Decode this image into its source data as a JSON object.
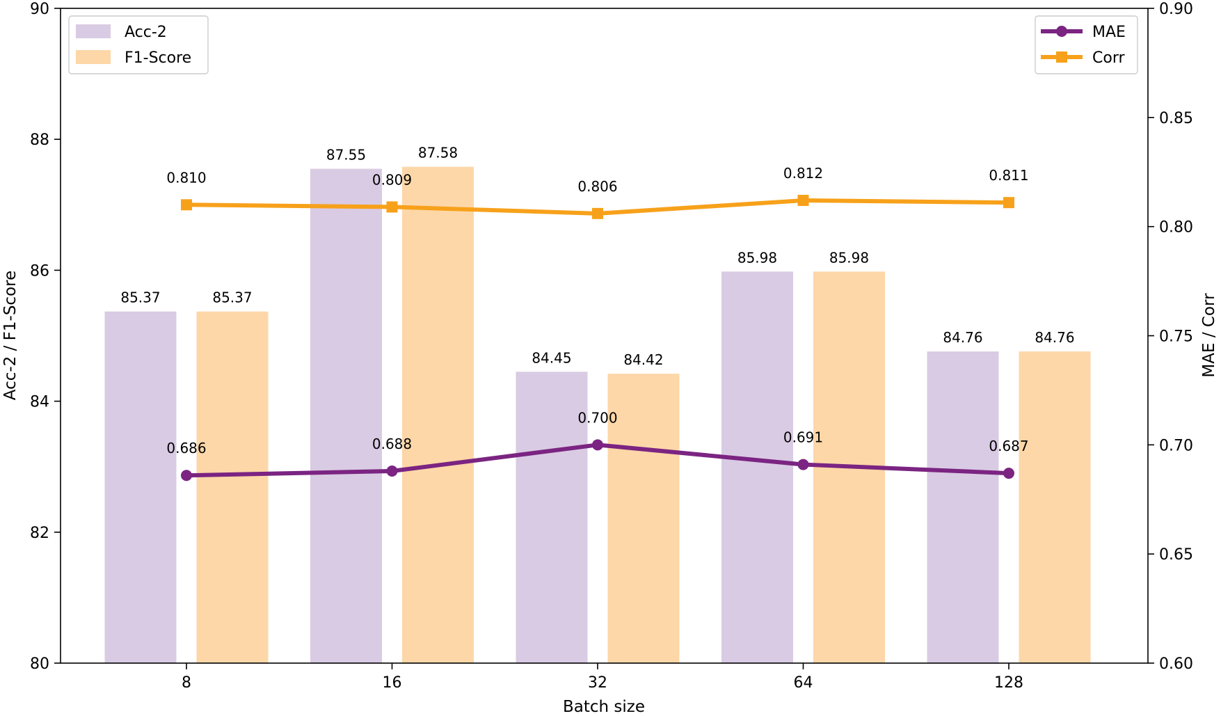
{
  "chart_data": {
    "type": "bar",
    "title": "",
    "xlabel": "Batch size",
    "ylabel": "Acc-2 / F1-Score",
    "ylabel_right": "MAE / Corr",
    "categories": [
      "8",
      "16",
      "32",
      "64",
      "128"
    ],
    "ylim": [
      80,
      90
    ],
    "yticks": [
      "80",
      "82",
      "84",
      "86",
      "88",
      "90"
    ],
    "ylim_right": [
      0.6,
      0.9
    ],
    "yticks_right": [
      "0.60",
      "0.65",
      "0.70",
      "0.75",
      "0.80",
      "0.85",
      "0.90"
    ],
    "bar_series": [
      {
        "name": "Acc-2",
        "values": [
          85.37,
          87.55,
          84.45,
          85.98,
          84.76
        ],
        "labels": [
          "85.37",
          "87.55",
          "84.45",
          "85.98",
          "84.76"
        ],
        "color": "#d9cbe3"
      },
      {
        "name": "F1-Score",
        "values": [
          85.37,
          87.58,
          84.42,
          85.98,
          84.76
        ],
        "labels": [
          "85.37",
          "87.58",
          "84.42",
          "85.98",
          "84.76"
        ],
        "color": "#fdd7a8"
      }
    ],
    "line_series": [
      {
        "name": "MAE",
        "values": [
          0.686,
          0.688,
          0.7,
          0.691,
          0.687
        ],
        "labels": [
          "0.686",
          "0.688",
          "0.700",
          "0.691",
          "0.687"
        ],
        "color": "#7b2482",
        "marker": "circle",
        "axis": "right"
      },
      {
        "name": "Corr",
        "values": [
          0.81,
          0.809,
          0.806,
          0.812,
          0.811
        ],
        "labels": [
          "0.810",
          "0.809",
          "0.806",
          "0.812",
          "0.811"
        ],
        "color": "#f7a11b",
        "marker": "square",
        "axis": "right"
      }
    ],
    "legend_left": "top-left",
    "legend_right": "top-right",
    "grid": false
  }
}
